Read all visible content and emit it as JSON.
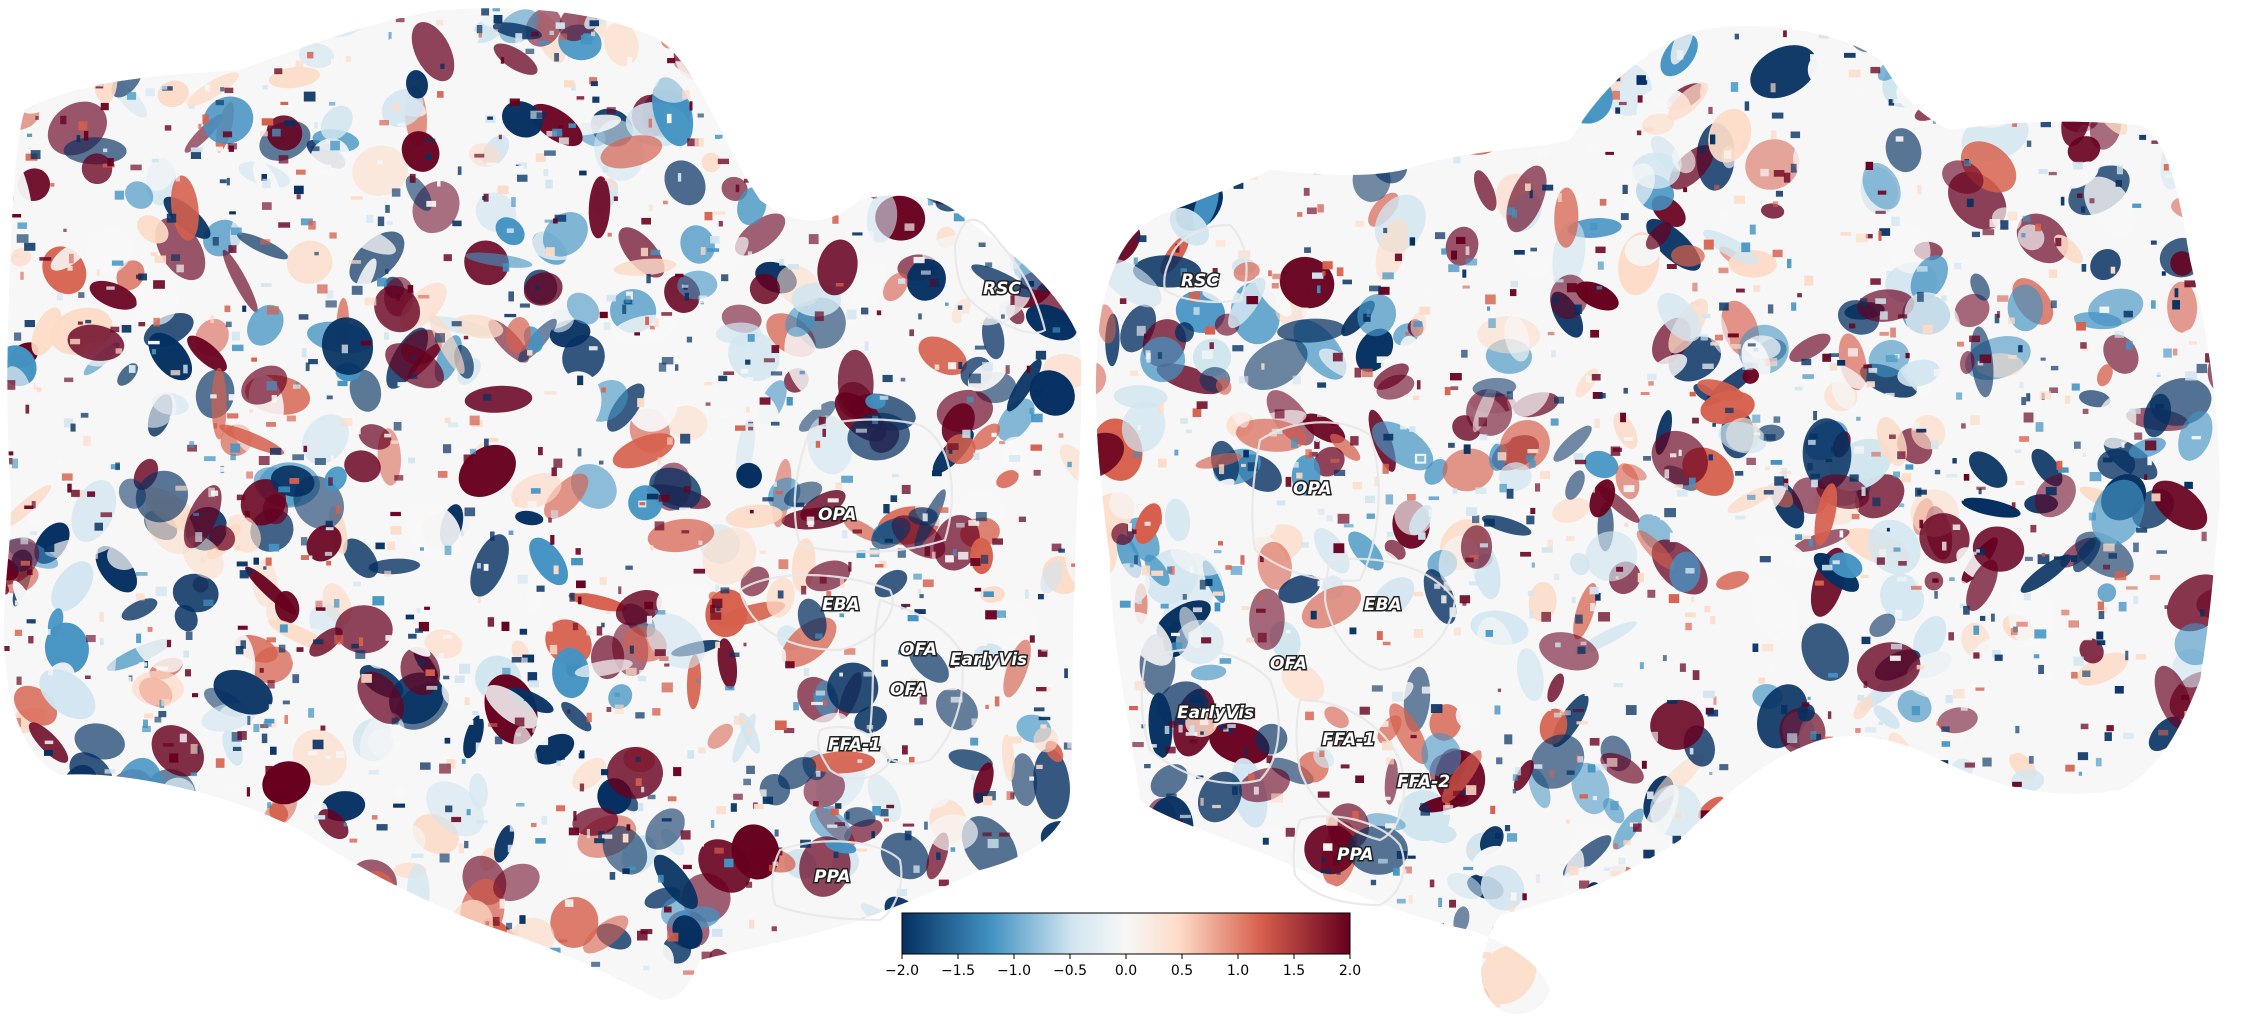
{
  "rois": {
    "left": [
      {
        "key": "RSC",
        "label": "RSC"
      },
      {
        "key": "OPA",
        "label": "OPA"
      },
      {
        "key": "EBA",
        "label": "EBA"
      },
      {
        "key": "OFA1",
        "label": "OFA"
      },
      {
        "key": "EarlyVis",
        "label": "EarlyVis"
      },
      {
        "key": "OFA2",
        "label": "OFA"
      },
      {
        "key": "FFA1",
        "label": "FFA-1"
      },
      {
        "key": "PPA",
        "label": "PPA"
      }
    ],
    "right": [
      {
        "key": "RSC",
        "label": "RSC"
      },
      {
        "key": "OPA",
        "label": "OPA"
      },
      {
        "key": "EBA",
        "label": "EBA"
      },
      {
        "key": "OFA",
        "label": "OFA"
      },
      {
        "key": "EarlyVis",
        "label": "EarlyVis"
      },
      {
        "key": "FFA1",
        "label": "FFA-1"
      },
      {
        "key": "FFA2",
        "label": "FFA-2"
      },
      {
        "key": "PPA",
        "label": "PPA"
      }
    ]
  },
  "colorbar": {
    "colormap": "RdBu_r",
    "vmin": -2.0,
    "vmax": 2.0,
    "ticks": [
      "−2.0",
      "−1.5",
      "−1.0",
      "−0.5",
      "0.0",
      "0.5",
      "1.0",
      "1.5",
      "2.0"
    ],
    "colors": {
      "low": "#053061",
      "mid_low": "#4393c3",
      "light_low": "#d1e5f0",
      "center": "#f7f7f7",
      "light_high": "#fddbc7",
      "mid_high": "#d6604d",
      "high": "#67001f"
    }
  }
}
